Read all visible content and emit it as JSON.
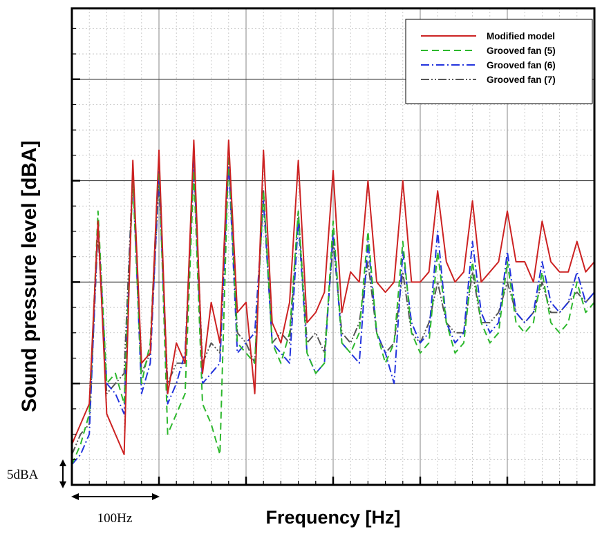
{
  "chart_data": {
    "type": "line",
    "xlabel": "Frequency [Hz]",
    "ylabel": "Sound pressure level [dBA]",
    "x_scale_label": "100Hz",
    "y_scale_label": "5dBA",
    "xlim": [
      0,
      600
    ],
    "ylim": [
      0,
      47
    ],
    "grid": true,
    "legend_position": "top-right",
    "x": [
      0,
      10,
      20,
      30,
      40,
      50,
      60,
      70,
      80,
      90,
      100,
      110,
      120,
      130,
      140,
      150,
      160,
      170,
      180,
      190,
      200,
      210,
      220,
      230,
      240,
      250,
      260,
      270,
      280,
      290,
      300,
      310,
      320,
      330,
      340,
      350,
      360,
      370,
      380,
      390,
      400,
      410,
      420,
      430,
      440,
      450,
      460,
      470,
      480,
      490,
      500,
      510,
      520,
      530,
      540,
      550,
      560,
      570,
      580,
      590,
      600
    ],
    "series": [
      {
        "name": "Modified model",
        "color": "#cc2222",
        "dash": "solid",
        "values": [
          4,
          6,
          8,
          26,
          7,
          5,
          3,
          32,
          12,
          13,
          33,
          9,
          14,
          12,
          34,
          11,
          18,
          14,
          34,
          17,
          18,
          9,
          33,
          16,
          14,
          18,
          32,
          16,
          17,
          19,
          31,
          17,
          21,
          20,
          30,
          20,
          19,
          20,
          30,
          20,
          20,
          21,
          29,
          22,
          20,
          21,
          28,
          20,
          21,
          22,
          27,
          22,
          22,
          20,
          26,
          22,
          21,
          21,
          24,
          21,
          22
        ]
      },
      {
        "name": "Grooved fan (5)",
        "color": "#2db82d",
        "dash": "long-dash",
        "values": [
          2,
          4,
          7,
          27,
          10,
          11,
          8,
          30,
          10,
          14,
          32,
          5,
          7,
          9,
          31,
          8,
          6,
          3,
          33,
          14,
          13,
          12,
          29,
          14,
          12,
          15,
          27,
          13,
          11,
          12,
          26,
          14,
          13,
          15,
          25,
          15,
          12,
          14,
          24,
          15,
          13,
          14,
          23,
          16,
          13,
          14,
          22,
          16,
          14,
          15,
          22,
          16,
          15,
          16,
          21,
          16,
          15,
          16,
          20,
          17,
          18
        ]
      },
      {
        "name": "Grooved fan (6)",
        "color": "#2233dd",
        "dash": "dash-dot",
        "values": [
          2,
          3,
          5,
          26,
          10,
          9,
          7,
          31,
          9,
          12,
          31,
          8,
          10,
          13,
          32,
          10,
          11,
          12,
          32,
          13,
          14,
          15,
          28,
          14,
          13,
          12,
          26,
          13,
          11,
          12,
          25,
          14,
          13,
          12,
          24,
          15,
          13,
          10,
          23,
          16,
          14,
          15,
          25,
          16,
          14,
          15,
          24,
          17,
          15,
          16,
          23,
          17,
          16,
          17,
          22,
          18,
          17,
          18,
          21,
          18,
          19
        ]
      },
      {
        "name": "Grooved fan (7)",
        "color": "#555555",
        "dash": "dash-dot-dot",
        "values": [
          3,
          5,
          6,
          25,
          9,
          10,
          11,
          31,
          11,
          13,
          30,
          10,
          12,
          12,
          32,
          12,
          14,
          13,
          32,
          15,
          14,
          12,
          29,
          14,
          15,
          14,
          27,
          14,
          15,
          13,
          24,
          15,
          14,
          16,
          22,
          15,
          13,
          14,
          21,
          15,
          14,
          16,
          20,
          16,
          15,
          15,
          21,
          16,
          16,
          17,
          20,
          17,
          16,
          17,
          20,
          17,
          17,
          18,
          19,
          18,
          19
        ]
      }
    ]
  }
}
